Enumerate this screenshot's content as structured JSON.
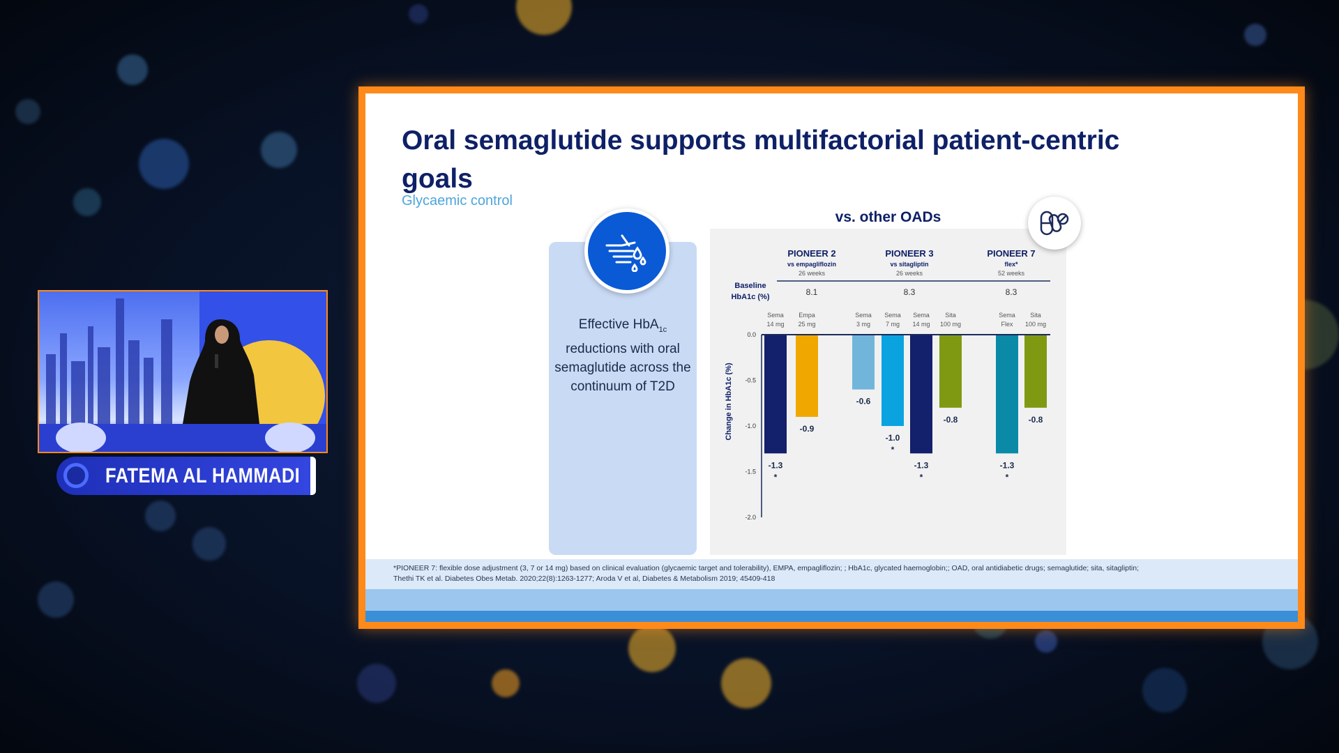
{
  "slide": {
    "title": "Oral semaglutide supports multifactorial patient-centric goals",
    "subtitle": "Glycaemic control",
    "card_text_1": "Effective HbA",
    "card_text_sub": "1c",
    "card_text_2": "reductions with oral semaglutide across the continuum of T2D",
    "panel_title": "vs. other OADs",
    "footnote_1": "*PIONEER 7: flexible dose adjustment (3, 7 or 14 mg) based on clinical evaluation (glycaemic target and tolerability), EMPA, empagliflozin; ; HbA1c, glycated haemoglobin;; OAD, oral antidiabetic drugs;  semaglutide; sita, sitagliptin;",
    "footnote_2": "Thethi TK et al. Diabetes Obes Metab. 2020;22(8):1263-1277; Aroda V et al, Diabetes & Metabolism 2019; 45409-418"
  },
  "speaker": {
    "name": "FATEMA AL HAMMADI"
  },
  "chart_data": {
    "type": "bar",
    "ylabel": "Change in HbA1c (%)",
    "ylim": [
      -2.0,
      0.0
    ],
    "yticks": [
      "0.0",
      "-0.5",
      "-1.0",
      "-1.5",
      "-2.0"
    ],
    "baseline_label": [
      "Baseline",
      "HbA1c (%)"
    ],
    "groups": [
      {
        "name": "PIONEER 2",
        "comparator": "vs empagliflozin",
        "duration": "26 weeks",
        "baseline": "8.1"
      },
      {
        "name": "PIONEER 3",
        "comparator": "vs sitagliptin",
        "duration": "26 weeks",
        "baseline": "8.3"
      },
      {
        "name": "PIONEER 7",
        "comparator": "flex*",
        "duration": "52 weeks",
        "baseline": "8.3"
      }
    ],
    "bars": [
      {
        "label": [
          "Sema",
          "14 mg"
        ],
        "value": -1.3,
        "text": "-1.3",
        "sig": true,
        "color": "#13206b"
      },
      {
        "label": [
          "Empa",
          "25 mg"
        ],
        "value": -0.9,
        "text": "-0.9",
        "sig": false,
        "color": "#f0a800"
      },
      {
        "label": [
          "Sema",
          "3 mg"
        ],
        "value": -0.6,
        "text": "-0.6",
        "sig": false,
        "color": "#72b5da"
      },
      {
        "label": [
          "Sema",
          "7 mg"
        ],
        "value": -1.0,
        "text": "-1.0",
        "sig": true,
        "color": "#0aa3e0"
      },
      {
        "label": [
          "Sema",
          "14 mg"
        ],
        "value": -1.3,
        "text": "-1.3",
        "sig": true,
        "color": "#13206b"
      },
      {
        "label": [
          "Sita",
          "100 mg"
        ],
        "value": -0.8,
        "text": "-0.8",
        "sig": false,
        "color": "#7f9a12"
      },
      {
        "label": [
          "Sema",
          "Flex"
        ],
        "value": -1.3,
        "text": "-1.3",
        "sig": true,
        "color": "#0b8aa8"
      },
      {
        "label": [
          "Sita",
          "100 mg"
        ],
        "value": -0.8,
        "text": "-0.8",
        "sig": false,
        "color": "#7f9a12"
      }
    ],
    "sig_marker": "*"
  }
}
